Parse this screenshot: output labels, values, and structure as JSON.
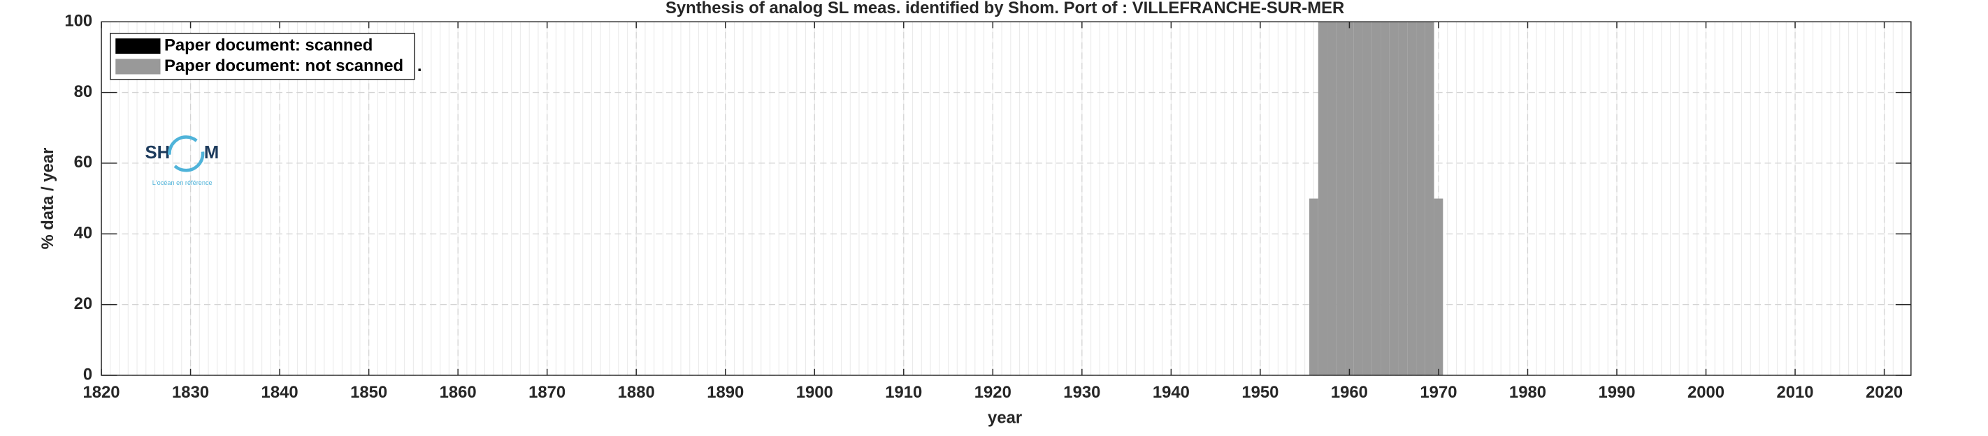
{
  "chart_data": {
    "type": "bar",
    "title": "Synthesis of analog SL meas. identified by Shom. Port of : VILLEFRANCHE-SUR-MER",
    "x_label": "year",
    "y_label": "% data / year",
    "x": [
      1956,
      1957,
      1958,
      1959,
      1960,
      1961,
      1962,
      1963,
      1964,
      1965,
      1966,
      1967,
      1968,
      1969,
      1970
    ],
    "series": [
      {
        "name": "Paper document: scanned",
        "color": "#000000",
        "values": [
          0,
          0,
          0,
          0,
          0,
          0,
          0,
          0,
          0,
          0,
          0,
          0,
          0,
          0,
          0
        ]
      },
      {
        "name": "Paper document: not scanned   .",
        "color": "#999999",
        "values": [
          50,
          100,
          100,
          100,
          100,
          100,
          100,
          100,
          100,
          100,
          100,
          100,
          100,
          100,
          50
        ]
      }
    ],
    "xlim": [
      1820,
      2023
    ],
    "ylim": [
      0,
      100
    ],
    "xticks": [
      1820,
      1830,
      1840,
      1850,
      1860,
      1870,
      1880,
      1890,
      1900,
      1910,
      1920,
      1930,
      1940,
      1950,
      1960,
      1970,
      1980,
      1990,
      2000,
      2010,
      2020
    ],
    "yticks": [
      0,
      20,
      40,
      60,
      80,
      100
    ],
    "grid": true,
    "minor_x_grid": true,
    "legend": "upper left"
  },
  "logo": {
    "left": "SH",
    "right": "M",
    "tagline": "L'océan en référence"
  }
}
